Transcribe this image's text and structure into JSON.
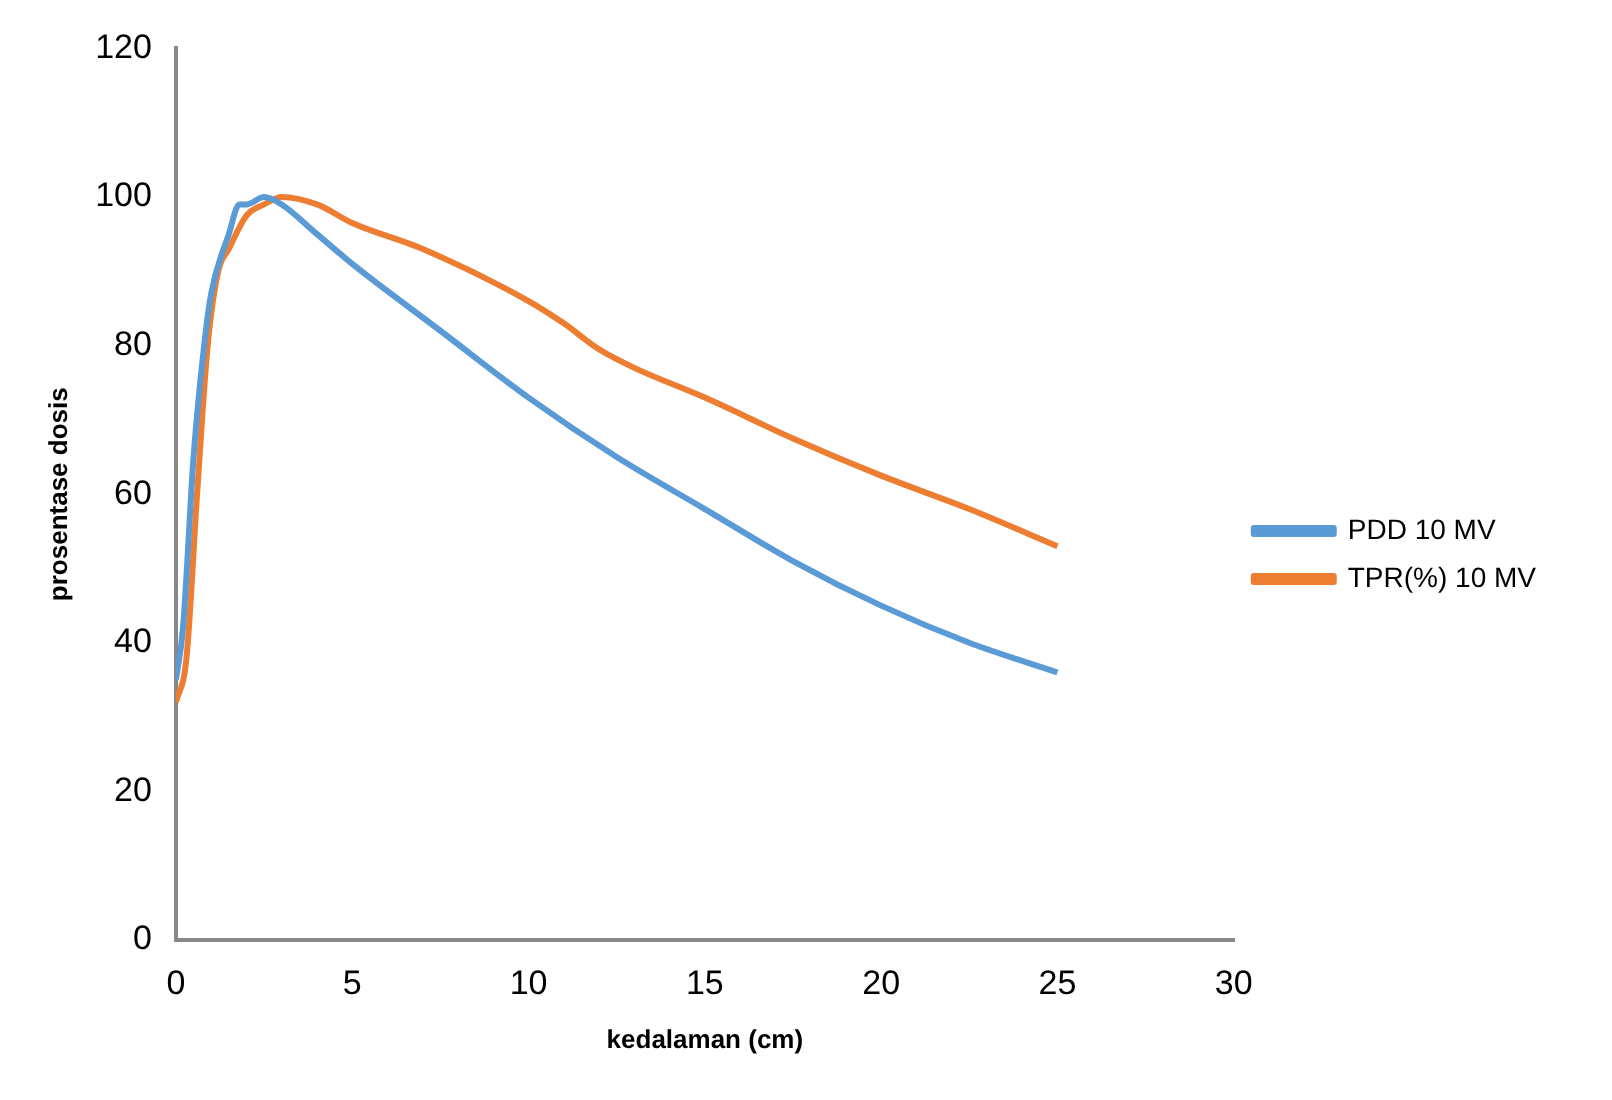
{
  "chart_data": {
    "type": "line",
    "xlabel": "kedalaman (cm)",
    "ylabel": "prosentase dosis",
    "xlim": [
      0,
      30
    ],
    "xticks": [
      0,
      5,
      10,
      15,
      20,
      25,
      30
    ],
    "ylim": [
      0,
      120
    ],
    "yticks": [
      0,
      20,
      40,
      60,
      80,
      100,
      120
    ],
    "grid": false,
    "legend": "right",
    "marker": "none",
    "line_style": "solid",
    "series": [
      {
        "name": "PDD 10 MV",
        "color": "#5b9bd5",
        "x": [
          0,
          0.2,
          0.5,
          0.8,
          1,
          1.5,
          1.8,
          2,
          2.5,
          3,
          4,
          5,
          7.5,
          10,
          12.5,
          15,
          17.5,
          20,
          22.5,
          25
        ],
        "values": [
          35,
          42,
          65,
          80,
          87,
          95,
          99,
          99,
          100,
          99,
          95,
          91,
          82,
          73,
          65,
          58,
          51,
          45,
          40,
          36
        ]
      },
      {
        "name": "TPR(%) 10 MV",
        "color": "#ed7d31",
        "x": [
          0,
          0.3,
          0.6,
          0.9,
          1.2,
          1.5,
          2,
          2.5,
          3,
          4,
          5,
          7,
          10,
          11,
          12,
          13,
          15,
          17.5,
          20,
          22.5,
          25
        ],
        "values": [
          32,
          38,
          60,
          80,
          90,
          93,
          97.5,
          99,
          100,
          99,
          96.5,
          93,
          86,
          83,
          79.5,
          77,
          73,
          67.5,
          62.5,
          58,
          53
        ]
      }
    ]
  }
}
